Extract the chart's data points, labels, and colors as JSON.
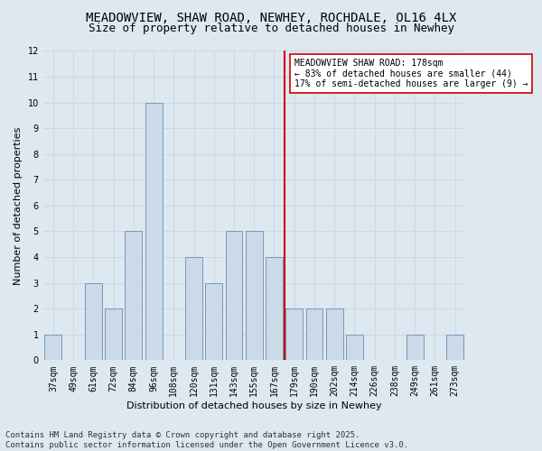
{
  "title1": "MEADOWVIEW, SHAW ROAD, NEWHEY, ROCHDALE, OL16 4LX",
  "title2": "Size of property relative to detached houses in Newhey",
  "xlabel": "Distribution of detached houses by size in Newhey",
  "ylabel": "Number of detached properties",
  "categories": [
    "37sqm",
    "49sqm",
    "61sqm",
    "72sqm",
    "84sqm",
    "96sqm",
    "108sqm",
    "120sqm",
    "131sqm",
    "143sqm",
    "155sqm",
    "167sqm",
    "179sqm",
    "190sqm",
    "202sqm",
    "214sqm",
    "226sqm",
    "238sqm",
    "249sqm",
    "261sqm",
    "273sqm"
  ],
  "values": [
    1,
    0,
    3,
    2,
    5,
    10,
    0,
    4,
    3,
    5,
    5,
    4,
    2,
    2,
    2,
    1,
    0,
    0,
    1,
    0,
    1
  ],
  "bar_color": "#ccd9e8",
  "bar_edge_color": "#7799bb",
  "grid_color": "#d0d8e0",
  "background_color": "#dde8f0",
  "vline_color": "#cc0000",
  "annotation_text": "MEADOWVIEW SHAW ROAD: 178sqm\n← 83% of detached houses are smaller (44)\n17% of semi-detached houses are larger (9) →",
  "annotation_box_color": "#ffffff",
  "annotation_border_color": "#cc0000",
  "ylim": [
    0,
    12
  ],
  "yticks": [
    0,
    1,
    2,
    3,
    4,
    5,
    6,
    7,
    8,
    9,
    10,
    11,
    12
  ],
  "footer": "Contains HM Land Registry data © Crown copyright and database right 2025.\nContains public sector information licensed under the Open Government Licence v3.0.",
  "title_fontsize": 10,
  "subtitle_fontsize": 9,
  "axis_label_fontsize": 8,
  "tick_fontsize": 7,
  "annotation_fontsize": 7,
  "footer_fontsize": 6.5
}
